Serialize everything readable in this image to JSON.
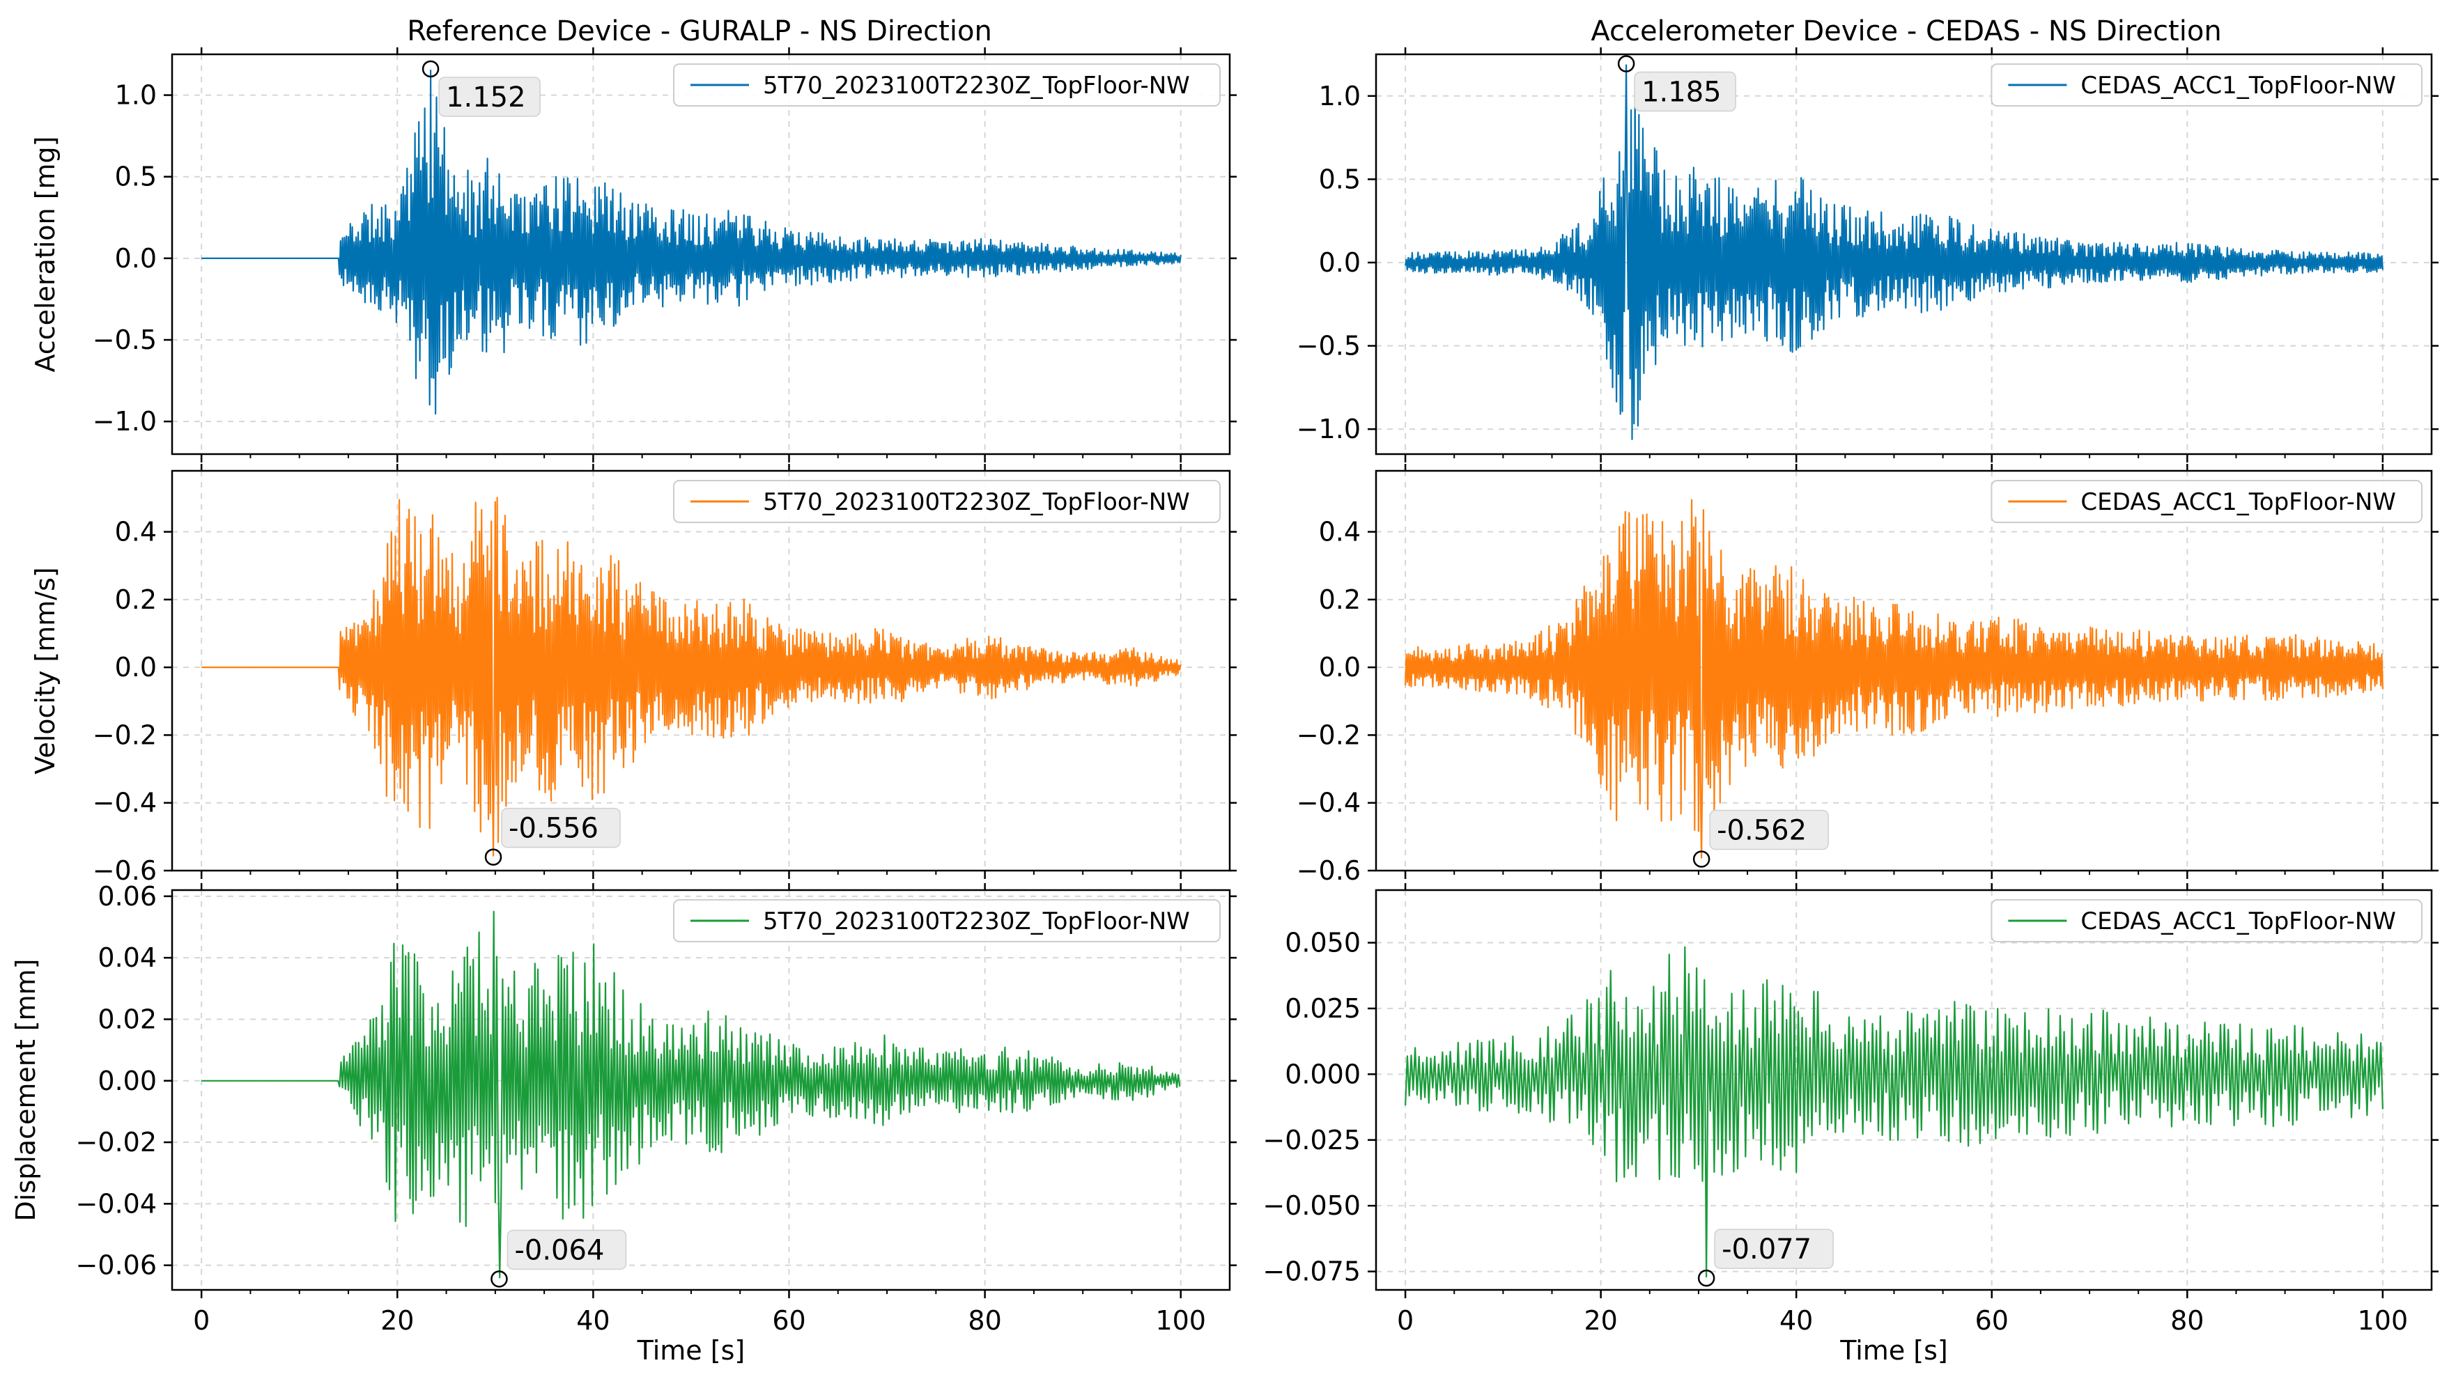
{
  "colors": {
    "acceleration": "#0072b2",
    "velocity": "#ff7f0e",
    "displacement": "#1a9c3a"
  },
  "chart_data": [
    {
      "type": "line",
      "id": "ref-acc",
      "column_title": "Reference Device - GURALP - NS Direction",
      "ylabel": "Acceleration [mg]",
      "xlabel": "",
      "quantity": "acceleration",
      "series": [
        {
          "name": "5T70_2023100T2230Z_TopFloor-NW"
        }
      ],
      "xlim": [
        -3,
        105
      ],
      "ylim": [
        -1.2,
        1.25
      ],
      "xticks": [
        0,
        20,
        40,
        60,
        80,
        100
      ],
      "yticks": [
        -1.0,
        -0.5,
        0.0,
        0.5,
        1.0
      ],
      "ytick_labels": [
        "−1.0",
        "−0.5",
        "0.0",
        "0.5",
        "1.0"
      ],
      "xtick_labels": [
        "",
        "",
        "",
        "",
        "",
        ""
      ],
      "signal": {
        "quiet_until": 14,
        "start_level": 0,
        "pre_noise": 0.0,
        "envelope": [
          [
            14,
            0.15
          ],
          [
            16,
            0.3
          ],
          [
            20,
            0.4
          ],
          [
            22,
            0.85
          ],
          [
            23.5,
            1.15
          ],
          [
            25,
            0.75
          ],
          [
            28,
            0.5
          ],
          [
            30,
            0.7
          ],
          [
            32,
            0.45
          ],
          [
            36,
            0.5
          ],
          [
            40,
            0.55
          ],
          [
            44,
            0.35
          ],
          [
            50,
            0.3
          ],
          [
            55,
            0.3
          ],
          [
            60,
            0.18
          ],
          [
            70,
            0.12
          ],
          [
            80,
            0.12
          ],
          [
            90,
            0.07
          ],
          [
            100,
            0.03
          ]
        ],
        "step": 0.1,
        "lf_amp": 0.0,
        "seed": 11
      },
      "annotation": {
        "x": 23.4,
        "y": 1.152,
        "label": "1.152"
      },
      "grid": true,
      "legend": "upper-right"
    },
    {
      "type": "line",
      "id": "acc-acc",
      "column_title": "Accelerometer Device - CEDAS - NS Direction",
      "ylabel": "",
      "xlabel": "",
      "quantity": "acceleration",
      "series": [
        {
          "name": "CEDAS_ACC1_TopFloor-NW"
        }
      ],
      "xlim": [
        -3,
        105
      ],
      "ylim": [
        -1.15,
        1.25
      ],
      "xticks": [
        0,
        20,
        40,
        60,
        80,
        100
      ],
      "yticks": [
        -1.0,
        -0.5,
        0.0,
        0.5,
        1.0
      ],
      "ytick_labels": [
        "−1.0",
        "−0.5",
        "0.0",
        "0.5",
        "1.0"
      ],
      "xtick_labels": [
        "",
        "",
        "",
        "",
        "",
        ""
      ],
      "signal": {
        "quiet_until": 0,
        "start_level": 0,
        "pre_noise": 0.05,
        "envelope": [
          [
            0,
            0.06
          ],
          [
            12,
            0.08
          ],
          [
            15,
            0.12
          ],
          [
            19,
            0.3
          ],
          [
            22,
            0.95
          ],
          [
            23.5,
            1.15
          ],
          [
            25,
            0.8
          ],
          [
            28,
            0.5
          ],
          [
            30,
            0.65
          ],
          [
            33,
            0.45
          ],
          [
            40,
            0.55
          ],
          [
            44,
            0.35
          ],
          [
            50,
            0.3
          ],
          [
            55,
            0.3
          ],
          [
            60,
            0.2
          ],
          [
            70,
            0.12
          ],
          [
            80,
            0.12
          ],
          [
            90,
            0.07
          ],
          [
            100,
            0.06
          ]
        ],
        "step": 0.1,
        "lf_amp": 0.0,
        "seed": 23
      },
      "annotation": {
        "x": 22.6,
        "y": 1.185,
        "label": "1.185"
      },
      "grid": true,
      "legend": "upper-right"
    },
    {
      "type": "line",
      "id": "ref-vel",
      "ylabel": "Velocity [mm/s]",
      "xlabel": "",
      "quantity": "velocity",
      "series": [
        {
          "name": "5T70_2023100T2230Z_TopFloor-NW"
        }
      ],
      "xlim": [
        -3,
        105
      ],
      "ylim": [
        -0.6,
        0.58
      ],
      "xticks": [
        0,
        20,
        40,
        60,
        80,
        100
      ],
      "yticks": [
        -0.6,
        -0.4,
        -0.2,
        0.0,
        0.2,
        0.4
      ],
      "ytick_labels": [
        "−0.6",
        "−0.4",
        "−0.2",
        "0.0",
        "0.2",
        "0.4"
      ],
      "xtick_labels": [
        "",
        "",
        "",
        "",
        "",
        ""
      ],
      "signal": {
        "quiet_until": 14,
        "start_level": 0,
        "pre_noise": 0.0,
        "envelope": [
          [
            14,
            0.1
          ],
          [
            17,
            0.18
          ],
          [
            20,
            0.5
          ],
          [
            23,
            0.5
          ],
          [
            26,
            0.35
          ],
          [
            28,
            0.5
          ],
          [
            30,
            0.55
          ],
          [
            32,
            0.35
          ],
          [
            36,
            0.4
          ],
          [
            40,
            0.4
          ],
          [
            44,
            0.3
          ],
          [
            48,
            0.18
          ],
          [
            52,
            0.22
          ],
          [
            56,
            0.2
          ],
          [
            60,
            0.12
          ],
          [
            65,
            0.1
          ],
          [
            70,
            0.12
          ],
          [
            75,
            0.06
          ],
          [
            80,
            0.1
          ],
          [
            85,
            0.06
          ],
          [
            90,
            0.04
          ],
          [
            95,
            0.06
          ],
          [
            100,
            0.02
          ]
        ],
        "step": 0.1,
        "lf_amp": 0.0,
        "seed": 37
      },
      "annotation": {
        "x": 29.8,
        "y": -0.556,
        "label": "-0.556"
      },
      "grid": true,
      "legend": "upper-right"
    },
    {
      "type": "line",
      "id": "acc-vel",
      "ylabel": "",
      "xlabel": "",
      "quantity": "velocity",
      "series": [
        {
          "name": "CEDAS_ACC1_TopFloor-NW"
        }
      ],
      "xlim": [
        -3,
        105
      ],
      "ylim": [
        -0.6,
        0.58
      ],
      "xticks": [
        0,
        20,
        40,
        60,
        80,
        100
      ],
      "yticks": [
        -0.6,
        -0.4,
        -0.2,
        0.0,
        0.2,
        0.4
      ],
      "ytick_labels": [
        "−0.6",
        "−0.4",
        "−0.2",
        "0.0",
        "0.2",
        "0.4"
      ],
      "xtick_labels": [
        "",
        "",
        "",
        "",
        "",
        ""
      ],
      "signal": {
        "quiet_until": 0,
        "start_level": 0,
        "pre_noise": 0.05,
        "envelope": [
          [
            0,
            0.06
          ],
          [
            12,
            0.08
          ],
          [
            16,
            0.15
          ],
          [
            20,
            0.35
          ],
          [
            22,
            0.5
          ],
          [
            25,
            0.45
          ],
          [
            28,
            0.5
          ],
          [
            31,
            0.5
          ],
          [
            34,
            0.3
          ],
          [
            40,
            0.3
          ],
          [
            44,
            0.22
          ],
          [
            48,
            0.2
          ],
          [
            52,
            0.2
          ],
          [
            56,
            0.15
          ],
          [
            60,
            0.15
          ],
          [
            70,
            0.12
          ],
          [
            80,
            0.1
          ],
          [
            90,
            0.1
          ],
          [
            100,
            0.07
          ]
        ],
        "step": 0.1,
        "lf_amp": 0.0,
        "seed": 41
      },
      "annotation": {
        "x": 30.3,
        "y": -0.562,
        "label": "-0.562"
      },
      "grid": true,
      "legend": "upper-right"
    },
    {
      "type": "line",
      "id": "ref-disp",
      "ylabel": "Displacement [mm]",
      "xlabel": "Time [s]",
      "quantity": "displacement",
      "series": [
        {
          "name": "5T70_2023100T2230Z_TopFloor-NW"
        }
      ],
      "xlim": [
        -3,
        105
      ],
      "ylim": [
        -0.068,
        0.062
      ],
      "xticks": [
        0,
        20,
        40,
        60,
        80,
        100
      ],
      "yticks": [
        -0.06,
        -0.04,
        -0.02,
        0.0,
        0.02,
        0.04,
        0.06
      ],
      "ytick_labels": [
        "−0.06",
        "−0.04",
        "−0.02",
        "0.00",
        "0.02",
        "0.04",
        "0.06"
      ],
      "xtick_labels": [
        "0",
        "20",
        "40",
        "60",
        "80",
        "100"
      ],
      "signal": {
        "quiet_until": 14,
        "start_level": 0,
        "pre_noise": 0.0,
        "envelope": [
          [
            14,
            0.006
          ],
          [
            17,
            0.018
          ],
          [
            20,
            0.05
          ],
          [
            23,
            0.04
          ],
          [
            26,
            0.045
          ],
          [
            28,
            0.05
          ],
          [
            30,
            0.058
          ],
          [
            32,
            0.04
          ],
          [
            36,
            0.045
          ],
          [
            40,
            0.045
          ],
          [
            44,
            0.03
          ],
          [
            48,
            0.02
          ],
          [
            52,
            0.025
          ],
          [
            56,
            0.02
          ],
          [
            60,
            0.012
          ],
          [
            65,
            0.012
          ],
          [
            70,
            0.015
          ],
          [
            75,
            0.01
          ],
          [
            80,
            0.012
          ],
          [
            85,
            0.01
          ],
          [
            90,
            0.005
          ],
          [
            95,
            0.007
          ],
          [
            100,
            0.002
          ]
        ],
        "step": 0.15,
        "lf_amp": 0.0,
        "seed": 53
      },
      "annotation": {
        "x": 30.4,
        "y": -0.064,
        "label": "-0.064"
      },
      "grid": true,
      "legend": "upper-right"
    },
    {
      "type": "line",
      "id": "acc-disp",
      "ylabel": "",
      "xlabel": "Time [s]",
      "quantity": "displacement",
      "series": [
        {
          "name": "CEDAS_ACC1_TopFloor-NW"
        }
      ],
      "xlim": [
        -3,
        105
      ],
      "ylim": [
        -0.082,
        0.07
      ],
      "xticks": [
        0,
        20,
        40,
        60,
        80,
        100
      ],
      "yticks": [
        -0.075,
        -0.05,
        -0.025,
        0.0,
        0.025,
        0.05
      ],
      "ytick_labels": [
        "−0.075",
        "−0.050",
        "−0.025",
        "0.000",
        "0.025",
        "0.050"
      ],
      "xtick_labels": [
        "0",
        "20",
        "40",
        "60",
        "80",
        "100"
      ],
      "signal": {
        "quiet_until": 0,
        "start_level": 0,
        "pre_noise": 0.004,
        "envelope": [
          [
            0,
            0.012
          ],
          [
            12,
            0.015
          ],
          [
            16,
            0.02
          ],
          [
            20,
            0.035
          ],
          [
            22,
            0.045
          ],
          [
            25,
            0.04
          ],
          [
            28,
            0.05
          ],
          [
            30,
            0.06
          ],
          [
            32,
            0.04
          ],
          [
            36,
            0.035
          ],
          [
            40,
            0.04
          ],
          [
            44,
            0.03
          ],
          [
            50,
            0.025
          ],
          [
            56,
            0.03
          ],
          [
            60,
            0.025
          ],
          [
            70,
            0.025
          ],
          [
            80,
            0.02
          ],
          [
            90,
            0.02
          ],
          [
            100,
            0.015
          ]
        ],
        "step": 0.2,
        "lf_amp": 0.0,
        "seed": 67
      },
      "annotation": {
        "x": 30.8,
        "y": -0.077,
        "label": "-0.077"
      },
      "grid": true,
      "legend": "upper-right"
    }
  ]
}
